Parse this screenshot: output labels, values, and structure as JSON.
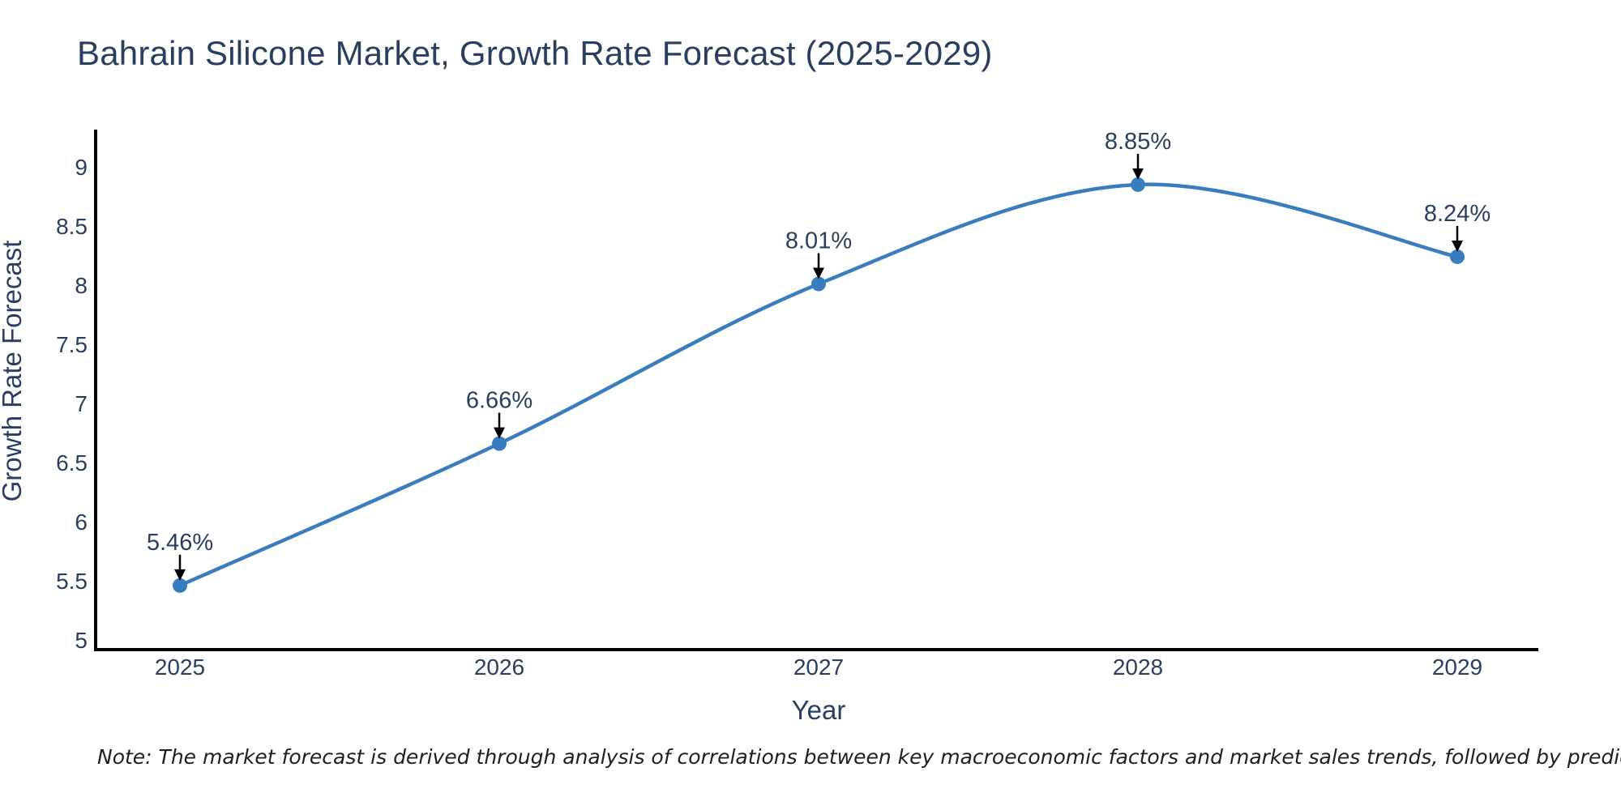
{
  "title": "Bahrain Silicone Market, Growth Rate Forecast (2025-2029)",
  "note": "Note: The market forecast is derived through analysis of correlations between key macroeconomic factors and market sales trends, followed by predictive modeling to project future sales",
  "chart_data": {
    "type": "line",
    "x": [
      2025,
      2026,
      2027,
      2028,
      2029
    ],
    "xtick_labels": [
      "2025",
      "2026",
      "2027",
      "2028",
      "2029"
    ],
    "series": [
      {
        "name": "Growth Rate Forecast",
        "values": [
          5.46,
          6.66,
          8.01,
          8.85,
          8.24
        ]
      }
    ],
    "point_labels": [
      "5.46%",
      "6.66%",
      "8.01%",
      "8.85%",
      "8.24%"
    ],
    "title": "Bahrain Silicone Market, Growth Rate Forecast (2025-2029)",
    "xlabel": "Year",
    "ylabel": "Growth Rate Forecast",
    "ylim": [
      5,
      9
    ],
    "yticks": [
      5,
      5.5,
      6,
      6.5,
      7,
      7.5,
      8,
      8.5,
      9
    ],
    "ytick_labels": [
      "5",
      "5.5",
      "6",
      "6.5",
      "7",
      "7.5",
      "8",
      "8.5",
      "9"
    ],
    "grid": false,
    "legend": "none",
    "smooth": true,
    "colors": {
      "line": "#3a7dbe",
      "marker": "#3a7dbe",
      "axis": "#000000",
      "text": "#2a3f5f",
      "arrow": "#000000"
    }
  }
}
